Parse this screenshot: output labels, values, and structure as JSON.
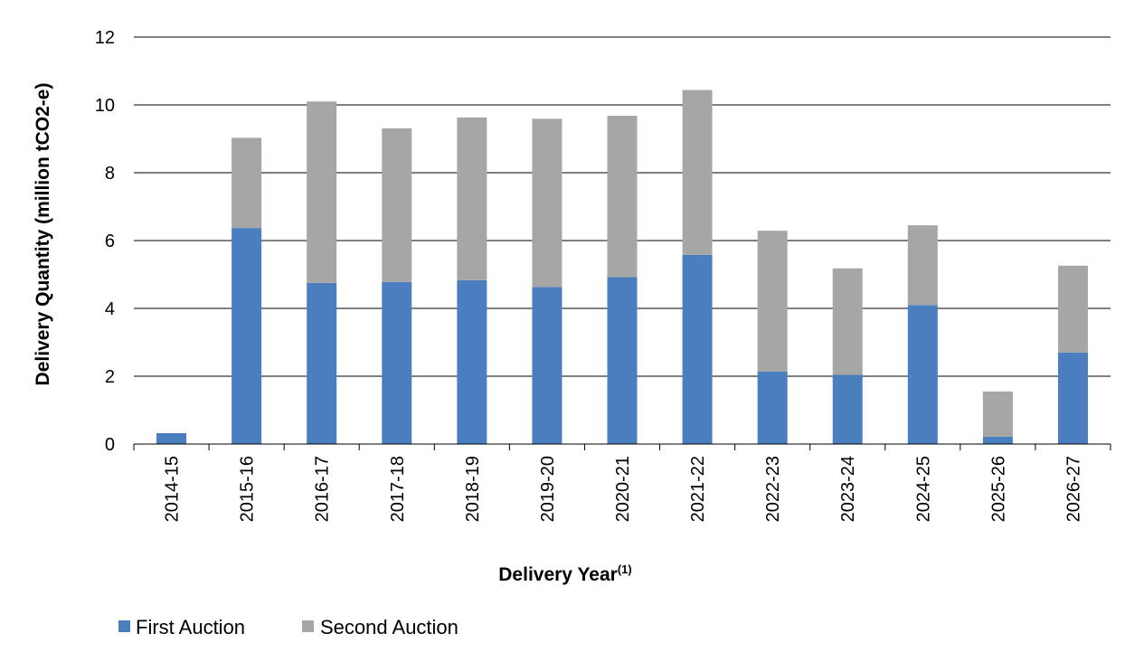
{
  "chart_data": {
    "type": "bar",
    "stacked": true,
    "title": "",
    "xlabel": "Delivery Year",
    "xlabel_superscript": "(1)",
    "ylabel": "Delivery Quantity (million tCO2-e)",
    "ylim": [
      0,
      12
    ],
    "yticks": [
      0,
      2,
      4,
      6,
      8,
      10,
      12
    ],
    "grid": true,
    "legend_position": "bottom-left",
    "categories": [
      "2014-15",
      "2015-16",
      "2016-17",
      "2017-18",
      "2018-19",
      "2019-20",
      "2020-21",
      "2021-22",
      "2022-23",
      "2023-24",
      "2024-25",
      "2025-26",
      "2026-27"
    ],
    "series": [
      {
        "name": "First Auction",
        "color": "#4a7ebf",
        "values": [
          0.32,
          6.37,
          4.75,
          4.78,
          4.83,
          4.63,
          4.92,
          5.58,
          2.14,
          2.04,
          4.1,
          0.22,
          2.7
        ]
      },
      {
        "name": "Second Auction",
        "color": "#a6a6a6",
        "values": [
          0.0,
          2.66,
          5.35,
          4.53,
          4.8,
          4.96,
          4.76,
          4.86,
          4.15,
          3.14,
          2.35,
          1.33,
          2.56
        ]
      }
    ]
  }
}
